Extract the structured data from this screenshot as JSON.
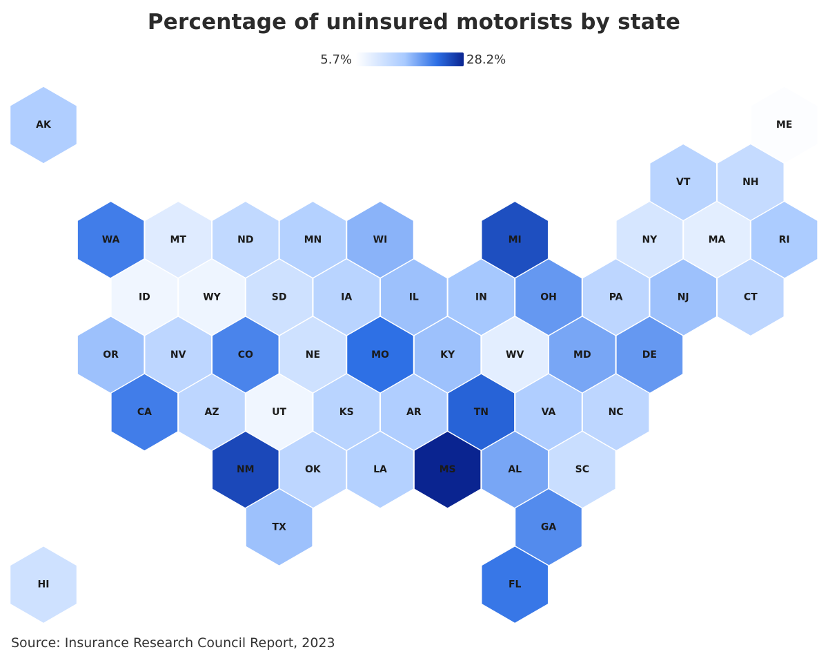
{
  "title": "Percentage of uninsured motorists by state",
  "legend": {
    "min_label": "5.7%",
    "max_label": "28.2%",
    "min_value": 5.7,
    "max_value": 28.2
  },
  "source": "Source: Insurance Research Council Report, 2023",
  "colors": {
    "low": "#ffffff",
    "mid": "#a9caff",
    "high": "#2d6fe5",
    "max": "#0a2490",
    "border": "#ffffff"
  },
  "chart_data": {
    "type": "heatmap",
    "map_kind": "hex-tile-map",
    "title": "Percentage of uninsured motorists by state",
    "value_unit": "%",
    "color_scale": {
      "min": 5.7,
      "max": 28.2
    },
    "states": [
      {
        "abbr": "AK",
        "row": 0,
        "col": 0,
        "value": 15.0
      },
      {
        "abbr": "ME",
        "row": 0,
        "col": 11,
        "value": 6.0
      },
      {
        "abbr": "VT",
        "row": 1,
        "col": 9,
        "value": 14.0
      },
      {
        "abbr": "NH",
        "row": 1,
        "col": 10,
        "value": 12.5
      },
      {
        "abbr": "WA",
        "row": 2,
        "col": 1,
        "value": 21.5
      },
      {
        "abbr": "MT",
        "row": 2,
        "col": 2,
        "value": 9.5
      },
      {
        "abbr": "ND",
        "row": 2,
        "col": 3,
        "value": 13.0
      },
      {
        "abbr": "MN",
        "row": 2,
        "col": 4,
        "value": 14.5
      },
      {
        "abbr": "WI",
        "row": 2,
        "col": 5,
        "value": 17.5
      },
      {
        "abbr": "MI",
        "row": 2,
        "col": 7,
        "value": 25.0
      },
      {
        "abbr": "NY",
        "row": 2,
        "col": 9,
        "value": 10.5
      },
      {
        "abbr": "MA",
        "row": 2,
        "col": 10,
        "value": 9.0
      },
      {
        "abbr": "RI",
        "row": 2,
        "col": 11,
        "value": 15.5
      },
      {
        "abbr": "ID",
        "row": 3,
        "col": 1,
        "value": 7.5
      },
      {
        "abbr": "WY",
        "row": 3,
        "col": 2,
        "value": 7.7
      },
      {
        "abbr": "SD",
        "row": 3,
        "col": 3,
        "value": 11.5
      },
      {
        "abbr": "IA",
        "row": 3,
        "col": 4,
        "value": 14.0
      },
      {
        "abbr": "IL",
        "row": 3,
        "col": 5,
        "value": 16.5
      },
      {
        "abbr": "IN",
        "row": 3,
        "col": 6,
        "value": 16.0
      },
      {
        "abbr": "OH",
        "row": 3,
        "col": 7,
        "value": 19.5
      },
      {
        "abbr": "PA",
        "row": 3,
        "col": 8,
        "value": 13.5
      },
      {
        "abbr": "NJ",
        "row": 3,
        "col": 9,
        "value": 16.5
      },
      {
        "abbr": "CT",
        "row": 3,
        "col": 10,
        "value": 13.5
      },
      {
        "abbr": "OR",
        "row": 4,
        "col": 1,
        "value": 16.5
      },
      {
        "abbr": "NV",
        "row": 4,
        "col": 2,
        "value": 13.5
      },
      {
        "abbr": "CO",
        "row": 4,
        "col": 3,
        "value": 21.0
      },
      {
        "abbr": "NE",
        "row": 4,
        "col": 4,
        "value": 11.5
      },
      {
        "abbr": "MO",
        "row": 4,
        "col": 5,
        "value": 22.5
      },
      {
        "abbr": "KY",
        "row": 4,
        "col": 6,
        "value": 16.5
      },
      {
        "abbr": "WV",
        "row": 4,
        "col": 7,
        "value": 9.0
      },
      {
        "abbr": "MD",
        "row": 4,
        "col": 8,
        "value": 18.5
      },
      {
        "abbr": "DE",
        "row": 4,
        "col": 9,
        "value": 19.5
      },
      {
        "abbr": "CA",
        "row": 5,
        "col": 1,
        "value": 21.5
      },
      {
        "abbr": "AZ",
        "row": 5,
        "col": 2,
        "value": 13.5
      },
      {
        "abbr": "UT",
        "row": 5,
        "col": 3,
        "value": 7.5
      },
      {
        "abbr": "KS",
        "row": 5,
        "col": 4,
        "value": 14.0
      },
      {
        "abbr": "AR",
        "row": 5,
        "col": 5,
        "value": 15.0
      },
      {
        "abbr": "TN",
        "row": 5,
        "col": 6,
        "value": 23.5
      },
      {
        "abbr": "VA",
        "row": 5,
        "col": 7,
        "value": 15.0
      },
      {
        "abbr": "NC",
        "row": 5,
        "col": 8,
        "value": 13.5
      },
      {
        "abbr": "NM",
        "row": 6,
        "col": 3,
        "value": 25.5
      },
      {
        "abbr": "OK",
        "row": 6,
        "col": 4,
        "value": 13.5
      },
      {
        "abbr": "LA",
        "row": 6,
        "col": 5,
        "value": 14.5
      },
      {
        "abbr": "MS",
        "row": 6,
        "col": 6,
        "value": 28.2
      },
      {
        "abbr": "AL",
        "row": 6,
        "col": 7,
        "value": 18.5
      },
      {
        "abbr": "SC",
        "row": 6,
        "col": 8,
        "value": 12.0
      },
      {
        "abbr": "TX",
        "row": 7,
        "col": 3,
        "value": 16.5
      },
      {
        "abbr": "GA",
        "row": 7,
        "col": 7,
        "value": 20.5
      },
      {
        "abbr": "HI",
        "row": 8,
        "col": 0,
        "value": 11.5
      },
      {
        "abbr": "FL",
        "row": 8,
        "col": 7,
        "value": 22.0
      }
    ]
  }
}
